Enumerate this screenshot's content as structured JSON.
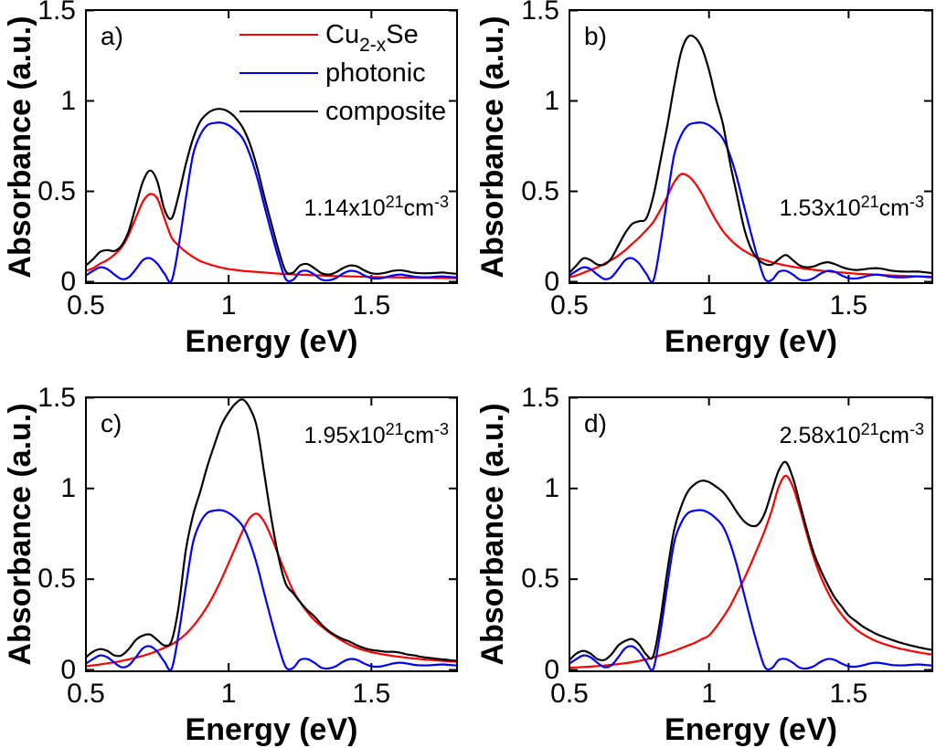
{
  "figure": {
    "background": "#ffffff",
    "axis_color": "#000000",
    "xlabel": "Energy (eV)",
    "ylabel": "Absorbance (a.u.)",
    "x_tick_labels": [
      "0.5",
      "1",
      "1.5"
    ],
    "y_tick_labels": [
      "0",
      "0.5",
      "1",
      "1.5"
    ]
  },
  "legend": {
    "entries": [
      {
        "name": "cu2xse",
        "color": "#ff0000",
        "label_parts": [
          {
            "t": "Cu"
          },
          {
            "t": "2-x",
            "sub": true
          },
          {
            "t": "Se"
          }
        ]
      },
      {
        "name": "photonic",
        "color": "#0000ff",
        "label_parts": [
          {
            "t": "photonic"
          }
        ]
      },
      {
        "name": "composite",
        "color": "#000000",
        "label_parts": [
          {
            "t": "composite"
          }
        ]
      }
    ]
  },
  "chart_data": {
    "type": "line",
    "xlabel": "Energy (eV)",
    "ylabel": "Absorbance (a.u.)",
    "xlim": [
      0.5,
      1.8
    ],
    "ylim": [
      0,
      1.5
    ],
    "x_ticks": [
      0.5,
      1.0,
      1.5
    ],
    "y_ticks": [
      0,
      0.5,
      1.0,
      1.5
    ],
    "grid": false,
    "legend_position": "top-right of panel a",
    "x": [
      0.5,
      0.525,
      0.55,
      0.575,
      0.6,
      0.625,
      0.65,
      0.675,
      0.7,
      0.725,
      0.75,
      0.775,
      0.8,
      0.825,
      0.85,
      0.875,
      0.9,
      0.925,
      0.95,
      0.975,
      1.0,
      1.025,
      1.05,
      1.075,
      1.1,
      1.125,
      1.15,
      1.175,
      1.2,
      1.225,
      1.25,
      1.275,
      1.3,
      1.325,
      1.35,
      1.375,
      1.4,
      1.425,
      1.45,
      1.475,
      1.5,
      1.525,
      1.55,
      1.575,
      1.6,
      1.625,
      1.65,
      1.675,
      1.7,
      1.725,
      1.75,
      1.775,
      1.8
    ],
    "panels": [
      {
        "id": "a",
        "corner_label": "a)",
        "carrier_density": "1.14x10^21 cm^-3",
        "annotation_parts": [
          {
            "t": "1.14x10"
          },
          {
            "t": "21",
            "sup": true
          },
          {
            "t": "cm"
          },
          {
            "t": "-3",
            "sup": true
          }
        ],
        "series": [
          {
            "name": "Cu2-xSe",
            "color": "#ff0000",
            "values": [
              0.06,
              0.075,
              0.1,
              0.12,
              0.15,
              0.19,
              0.26,
              0.355,
              0.445,
              0.485,
              0.46,
              0.35,
              0.245,
              0.2,
              0.165,
              0.138,
              0.115,
              0.1,
              0.088,
              0.078,
              0.07,
              0.065,
              0.06,
              0.057,
              0.054,
              0.051,
              0.048,
              0.045,
              0.043,
              0.041,
              0.039,
              0.038,
              0.036,
              0.035,
              0.033,
              0.032,
              0.031,
              0.03,
              0.029,
              0.028,
              0.027,
              0.026,
              0.025,
              0.025,
              0.024,
              0.023,
              0.023,
              0.022,
              0.022,
              0.021,
              0.021,
              0.02,
              0.02
            ]
          },
          {
            "name": "photonic",
            "color": "#0000ff",
            "values": [
              0.035,
              0.06,
              0.08,
              0.07,
              0.04,
              0.015,
              0.025,
              0.07,
              0.12,
              0.13,
              0.1,
              0.045,
              0.005,
              0.2,
              0.46,
              0.7,
              0.81,
              0.865,
              0.878,
              0.88,
              0.865,
              0.835,
              0.79,
              0.7,
              0.575,
              0.42,
              0.27,
              0.13,
              0.015,
              0.01,
              0.055,
              0.06,
              0.04,
              0.012,
              0.008,
              0.02,
              0.045,
              0.06,
              0.055,
              0.035,
              0.02,
              0.018,
              0.025,
              0.035,
              0.04,
              0.035,
              0.028,
              0.025,
              0.025,
              0.028,
              0.03,
              0.027,
              0.024
            ]
          },
          {
            "name": "composite",
            "color": "#000000",
            "values": [
              0.09,
              0.125,
              0.165,
              0.175,
              0.17,
              0.2,
              0.28,
              0.42,
              0.555,
              0.615,
              0.555,
              0.4,
              0.35,
              0.48,
              0.65,
              0.79,
              0.885,
              0.93,
              0.952,
              0.955,
              0.94,
              0.905,
              0.85,
              0.76,
              0.63,
              0.47,
              0.32,
              0.175,
              0.058,
              0.05,
              0.09,
              0.098,
              0.075,
              0.047,
              0.04,
              0.052,
              0.075,
              0.09,
              0.085,
              0.063,
              0.047,
              0.044,
              0.05,
              0.06,
              0.064,
              0.058,
              0.05,
              0.047,
              0.047,
              0.049,
              0.051,
              0.047,
              0.044
            ]
          }
        ]
      },
      {
        "id": "b",
        "corner_label": "b)",
        "carrier_density": "1.53x10^21 cm^-3",
        "annotation_parts": [
          {
            "t": "1.53x10"
          },
          {
            "t": "21",
            "sup": true
          },
          {
            "t": "cm"
          },
          {
            "t": "-3",
            "sup": true
          }
        ],
        "series": [
          {
            "name": "Cu2-xSe",
            "color": "#ff0000",
            "values": [
              0.025,
              0.035,
              0.05,
              0.065,
              0.08,
              0.1,
              0.12,
              0.145,
              0.175,
              0.21,
              0.245,
              0.285,
              0.33,
              0.395,
              0.47,
              0.55,
              0.595,
              0.585,
              0.545,
              0.485,
              0.41,
              0.34,
              0.28,
              0.235,
              0.2,
              0.172,
              0.15,
              0.133,
              0.12,
              0.108,
              0.098,
              0.09,
              0.083,
              0.077,
              0.071,
              0.066,
              0.062,
              0.058,
              0.054,
              0.051,
              0.048,
              0.045,
              0.043,
              0.041,
              0.039,
              0.037,
              0.035,
              0.034,
              0.032,
              0.031,
              0.03,
              0.029,
              0.028
            ]
          },
          {
            "name": "photonic",
            "color": "#0000ff",
            "values": [
              0.035,
              0.06,
              0.08,
              0.07,
              0.04,
              0.015,
              0.025,
              0.07,
              0.12,
              0.13,
              0.1,
              0.045,
              0.005,
              0.2,
              0.46,
              0.7,
              0.81,
              0.865,
              0.878,
              0.88,
              0.865,
              0.835,
              0.79,
              0.7,
              0.575,
              0.42,
              0.27,
              0.13,
              0.015,
              0.01,
              0.055,
              0.06,
              0.04,
              0.012,
              0.008,
              0.02,
              0.045,
              0.06,
              0.055,
              0.035,
              0.02,
              0.018,
              0.025,
              0.035,
              0.04,
              0.035,
              0.028,
              0.025,
              0.025,
              0.028,
              0.03,
              0.027,
              0.024
            ]
          },
          {
            "name": "composite",
            "color": "#000000",
            "values": [
              0.05,
              0.09,
              0.13,
              0.12,
              0.095,
              0.095,
              0.13,
              0.2,
              0.27,
              0.32,
              0.335,
              0.35,
              0.47,
              0.66,
              0.86,
              1.08,
              1.27,
              1.355,
              1.35,
              1.29,
              1.17,
              1.01,
              0.87,
              0.66,
              0.48,
              0.3,
              0.185,
              0.125,
              0.098,
              0.095,
              0.125,
              0.148,
              0.12,
              0.09,
              0.08,
              0.085,
              0.1,
              0.108,
              0.098,
              0.082,
              0.07,
              0.065,
              0.068,
              0.073,
              0.075,
              0.07,
              0.062,
              0.058,
              0.056,
              0.056,
              0.056,
              0.052,
              0.048
            ]
          }
        ]
      },
      {
        "id": "c",
        "corner_label": "c)",
        "carrier_density": "1.95x10^21 cm^-3",
        "annotation_parts": [
          {
            "t": "1.95x10"
          },
          {
            "t": "21",
            "sup": true
          },
          {
            "t": "cm"
          },
          {
            "t": "-3",
            "sup": true
          }
        ],
        "series": [
          {
            "name": "Cu2-xSe",
            "color": "#ff0000",
            "values": [
              0.02,
              0.025,
              0.03,
              0.036,
              0.042,
              0.05,
              0.058,
              0.068,
              0.078,
              0.09,
              0.105,
              0.122,
              0.14,
              0.165,
              0.198,
              0.24,
              0.29,
              0.35,
              0.42,
              0.5,
              0.59,
              0.68,
              0.77,
              0.84,
              0.86,
              0.815,
              0.73,
              0.63,
              0.53,
              0.44,
              0.375,
              0.32,
              0.275,
              0.24,
              0.21,
              0.183,
              0.158,
              0.138,
              0.121,
              0.108,
              0.098,
              0.09,
              0.083,
              0.077,
              0.072,
              0.067,
              0.063,
              0.059,
              0.056,
              0.053,
              0.05,
              0.047,
              0.045
            ]
          },
          {
            "name": "photonic",
            "color": "#0000ff",
            "values": [
              0.035,
              0.06,
              0.08,
              0.07,
              0.04,
              0.015,
              0.025,
              0.07,
              0.12,
              0.13,
              0.1,
              0.045,
              0.005,
              0.2,
              0.46,
              0.7,
              0.81,
              0.865,
              0.878,
              0.88,
              0.865,
              0.835,
              0.79,
              0.7,
              0.575,
              0.42,
              0.27,
              0.13,
              0.015,
              0.01,
              0.055,
              0.06,
              0.04,
              0.012,
              0.008,
              0.02,
              0.045,
              0.06,
              0.055,
              0.035,
              0.02,
              0.018,
              0.025,
              0.035,
              0.04,
              0.035,
              0.028,
              0.025,
              0.025,
              0.028,
              0.03,
              0.027,
              0.024
            ]
          },
          {
            "name": "composite",
            "color": "#000000",
            "values": [
              0.07,
              0.1,
              0.115,
              0.105,
              0.08,
              0.08,
              0.115,
              0.165,
              0.19,
              0.195,
              0.165,
              0.135,
              0.16,
              0.35,
              0.66,
              0.85,
              0.98,
              1.12,
              1.24,
              1.35,
              1.42,
              1.47,
              1.49,
              1.44,
              1.33,
              1.08,
              0.83,
              0.62,
              0.475,
              0.425,
              0.375,
              0.33,
              0.295,
              0.25,
              0.215,
              0.19,
              0.17,
              0.155,
              0.135,
              0.12,
              0.11,
              0.105,
              0.1,
              0.1,
              0.095,
              0.085,
              0.08,
              0.072,
              0.067,
              0.062,
              0.058,
              0.054,
              0.05
            ]
          }
        ]
      },
      {
        "id": "d",
        "corner_label": "d)",
        "carrier_density": "2.58x10^21 cm^-3",
        "annotation_parts": [
          {
            "t": "2.58x10"
          },
          {
            "t": "21",
            "sup": true
          },
          {
            "t": "cm"
          },
          {
            "t": "-3",
            "sup": true
          }
        ],
        "series": [
          {
            "name": "Cu2-xSe",
            "color": "#ff0000",
            "values": [
              0.012,
              0.014,
              0.016,
              0.018,
              0.021,
              0.024,
              0.028,
              0.032,
              0.037,
              0.043,
              0.05,
              0.058,
              0.068,
              0.08,
              0.092,
              0.105,
              0.12,
              0.135,
              0.15,
              0.17,
              0.19,
              0.235,
              0.29,
              0.35,
              0.425,
              0.5,
              0.585,
              0.675,
              0.77,
              0.88,
              1.01,
              1.07,
              1.01,
              0.89,
              0.75,
              0.62,
              0.515,
              0.43,
              0.36,
              0.305,
              0.26,
              0.225,
              0.198,
              0.176,
              0.158,
              0.144,
              0.132,
              0.121,
              0.112,
              0.104,
              0.097,
              0.09,
              0.085
            ]
          },
          {
            "name": "photonic",
            "color": "#0000ff",
            "values": [
              0.035,
              0.06,
              0.08,
              0.07,
              0.04,
              0.015,
              0.025,
              0.07,
              0.12,
              0.13,
              0.1,
              0.045,
              0.005,
              0.2,
              0.46,
              0.7,
              0.81,
              0.865,
              0.878,
              0.88,
              0.865,
              0.835,
              0.79,
              0.7,
              0.575,
              0.42,
              0.27,
              0.13,
              0.015,
              0.01,
              0.055,
              0.06,
              0.04,
              0.012,
              0.008,
              0.02,
              0.045,
              0.06,
              0.055,
              0.035,
              0.02,
              0.018,
              0.025,
              0.035,
              0.04,
              0.035,
              0.028,
              0.025,
              0.025,
              0.028,
              0.03,
              0.027,
              0.024
            ]
          },
          {
            "name": "composite",
            "color": "#000000",
            "values": [
              0.055,
              0.09,
              0.105,
              0.09,
              0.06,
              0.055,
              0.085,
              0.135,
              0.16,
              0.17,
              0.14,
              0.085,
              0.075,
              0.27,
              0.54,
              0.77,
              0.9,
              0.985,
              1.025,
              1.043,
              1.035,
              1.01,
              0.98,
              0.93,
              0.87,
              0.82,
              0.795,
              0.8,
              0.865,
              0.985,
              1.1,
              1.145,
              1.06,
              0.92,
              0.775,
              0.645,
              0.55,
              0.47,
              0.4,
              0.35,
              0.3,
              0.27,
              0.24,
              0.218,
              0.198,
              0.182,
              0.168,
              0.155,
              0.144,
              0.134,
              0.125,
              0.117,
              0.11
            ]
          }
        ]
      }
    ]
  }
}
